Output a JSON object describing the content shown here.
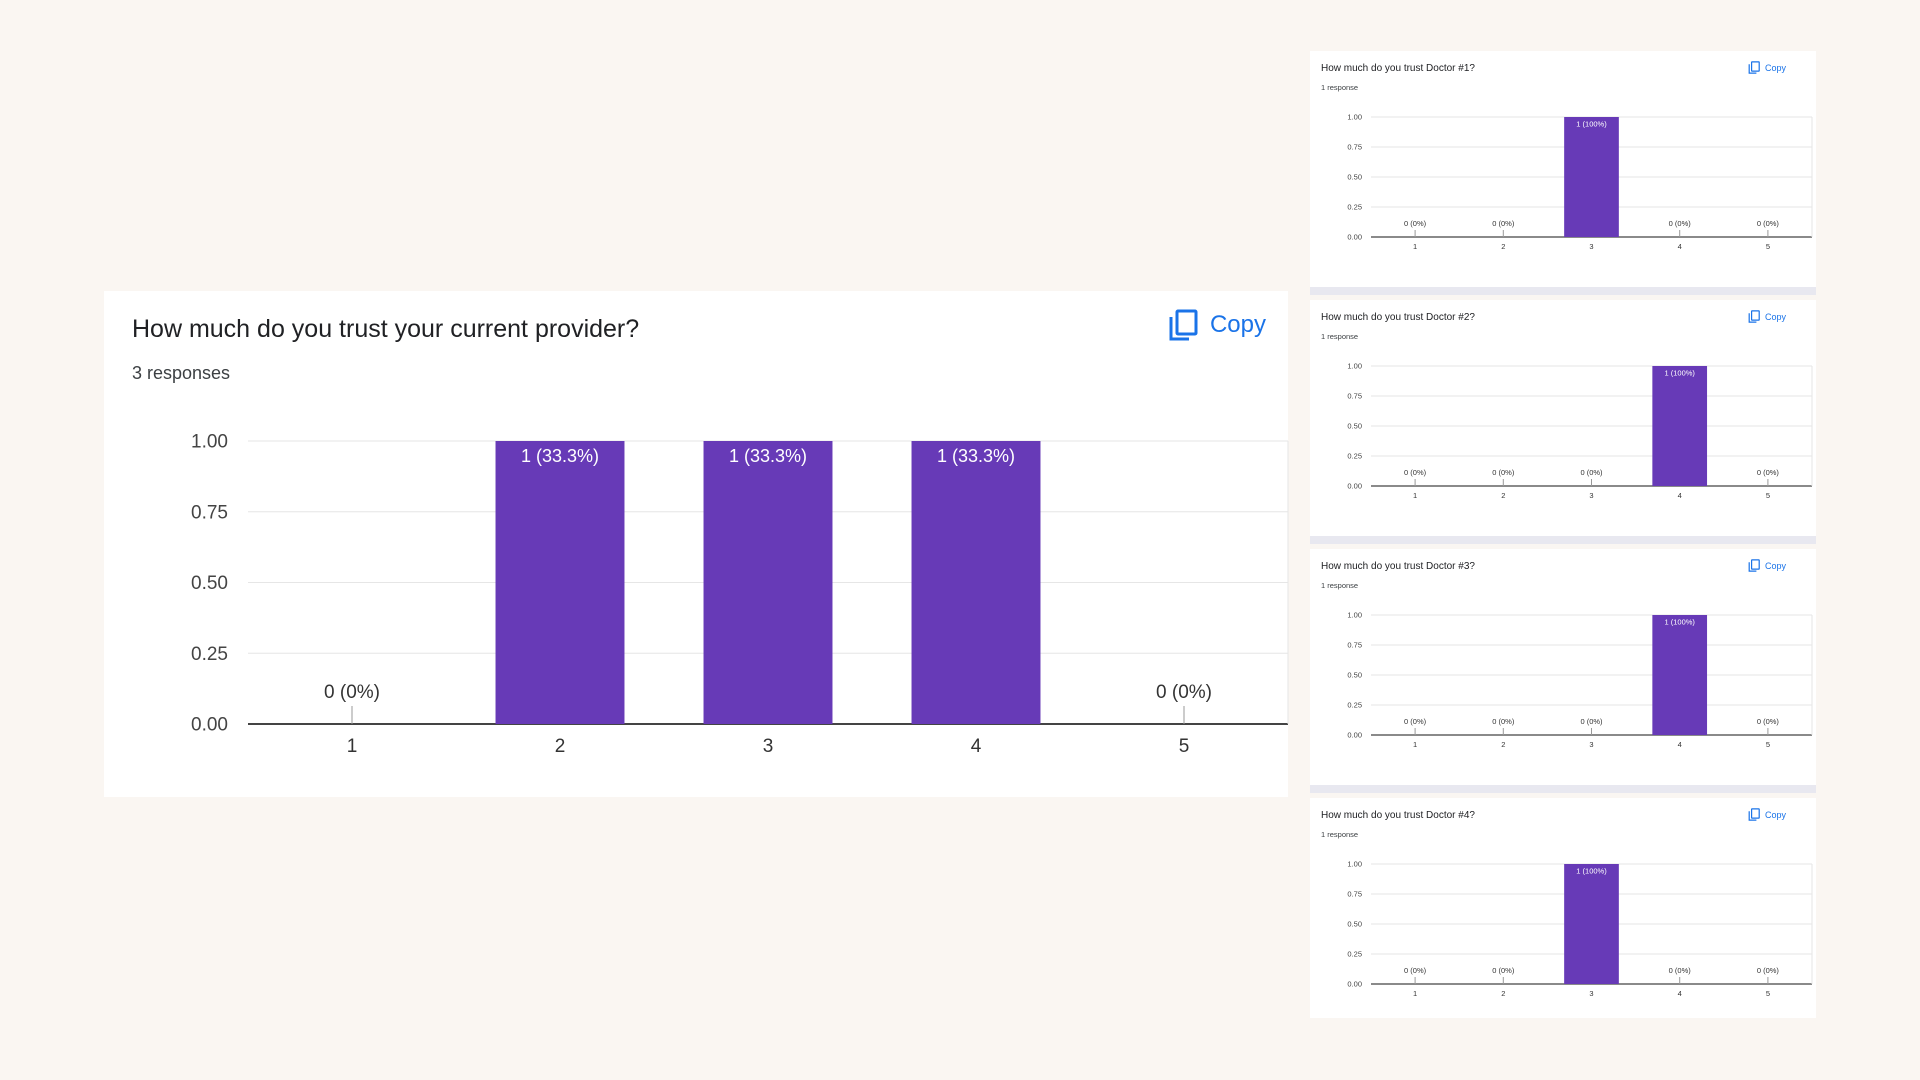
{
  "main": {
    "title": "How much do you trust your current provider?",
    "responses": "3 responses",
    "copy_label": "Copy"
  },
  "small": [
    {
      "title": "How much do you trust Doctor #1?",
      "responses": "1 response",
      "copy_label": "Copy"
    },
    {
      "title": "How much do you trust Doctor #2?",
      "responses": "1 response",
      "copy_label": "Copy"
    },
    {
      "title": "How much do you trust Doctor #3?",
      "responses": "1 response",
      "copy_label": "Copy"
    },
    {
      "title": "How much do you trust Doctor #4?",
      "responses": "1 response",
      "copy_label": "Copy"
    }
  ],
  "colors": {
    "bar": "#673ab7",
    "accent": "#1a73e8",
    "background": "#faf6f2"
  },
  "icons": {
    "copy": "copy-icon"
  },
  "chart_data": [
    {
      "type": "bar",
      "title": "How much do you trust your current provider?",
      "categories": [
        "1",
        "2",
        "3",
        "4",
        "5"
      ],
      "values": [
        0,
        1,
        1,
        1,
        0
      ],
      "labels": [
        "0 (0%)",
        "1 (33.3%)",
        "1 (33.3%)",
        "1 (33.3%)",
        "0 (0%)"
      ],
      "yticks": [
        "0.00",
        "0.25",
        "0.50",
        "0.75",
        "1.00"
      ],
      "ylim": [
        0,
        1
      ],
      "grid": true
    },
    {
      "type": "bar",
      "title": "How much do you trust Doctor #1?",
      "categories": [
        "1",
        "2",
        "3",
        "4",
        "5"
      ],
      "values": [
        0,
        0,
        1,
        0,
        0
      ],
      "labels": [
        "0 (0%)",
        "0 (0%)",
        "1 (100%)",
        "0 (0%)",
        "0 (0%)"
      ],
      "yticks": [
        "0.00",
        "0.25",
        "0.50",
        "0.75",
        "1.00"
      ],
      "ylim": [
        0,
        1
      ],
      "grid": true
    },
    {
      "type": "bar",
      "title": "How much do you trust Doctor #2?",
      "categories": [
        "1",
        "2",
        "3",
        "4",
        "5"
      ],
      "values": [
        0,
        0,
        0,
        1,
        0
      ],
      "labels": [
        "0 (0%)",
        "0 (0%)",
        "0 (0%)",
        "1 (100%)",
        "0 (0%)"
      ],
      "yticks": [
        "0.00",
        "0.25",
        "0.50",
        "0.75",
        "1.00"
      ],
      "ylim": [
        0,
        1
      ],
      "grid": true
    },
    {
      "type": "bar",
      "title": "How much do you trust Doctor #3?",
      "categories": [
        "1",
        "2",
        "3",
        "4",
        "5"
      ],
      "values": [
        0,
        0,
        0,
        1,
        0
      ],
      "labels": [
        "0 (0%)",
        "0 (0%)",
        "0 (0%)",
        "1 (100%)",
        "0 (0%)"
      ],
      "yticks": [
        "0.00",
        "0.25",
        "0.50",
        "0.75",
        "1.00"
      ],
      "ylim": [
        0,
        1
      ],
      "grid": true
    },
    {
      "type": "bar",
      "title": "How much do you trust Doctor #4?",
      "categories": [
        "1",
        "2",
        "3",
        "4",
        "5"
      ],
      "values": [
        0,
        0,
        1,
        0,
        0
      ],
      "labels": [
        "0 (0%)",
        "0 (0%)",
        "1 (100%)",
        "0 (0%)",
        "0 (0%)"
      ],
      "yticks": [
        "0.00",
        "0.25",
        "0.50",
        "0.75",
        "1.00"
      ],
      "ylim": [
        0,
        1
      ],
      "grid": true
    }
  ]
}
